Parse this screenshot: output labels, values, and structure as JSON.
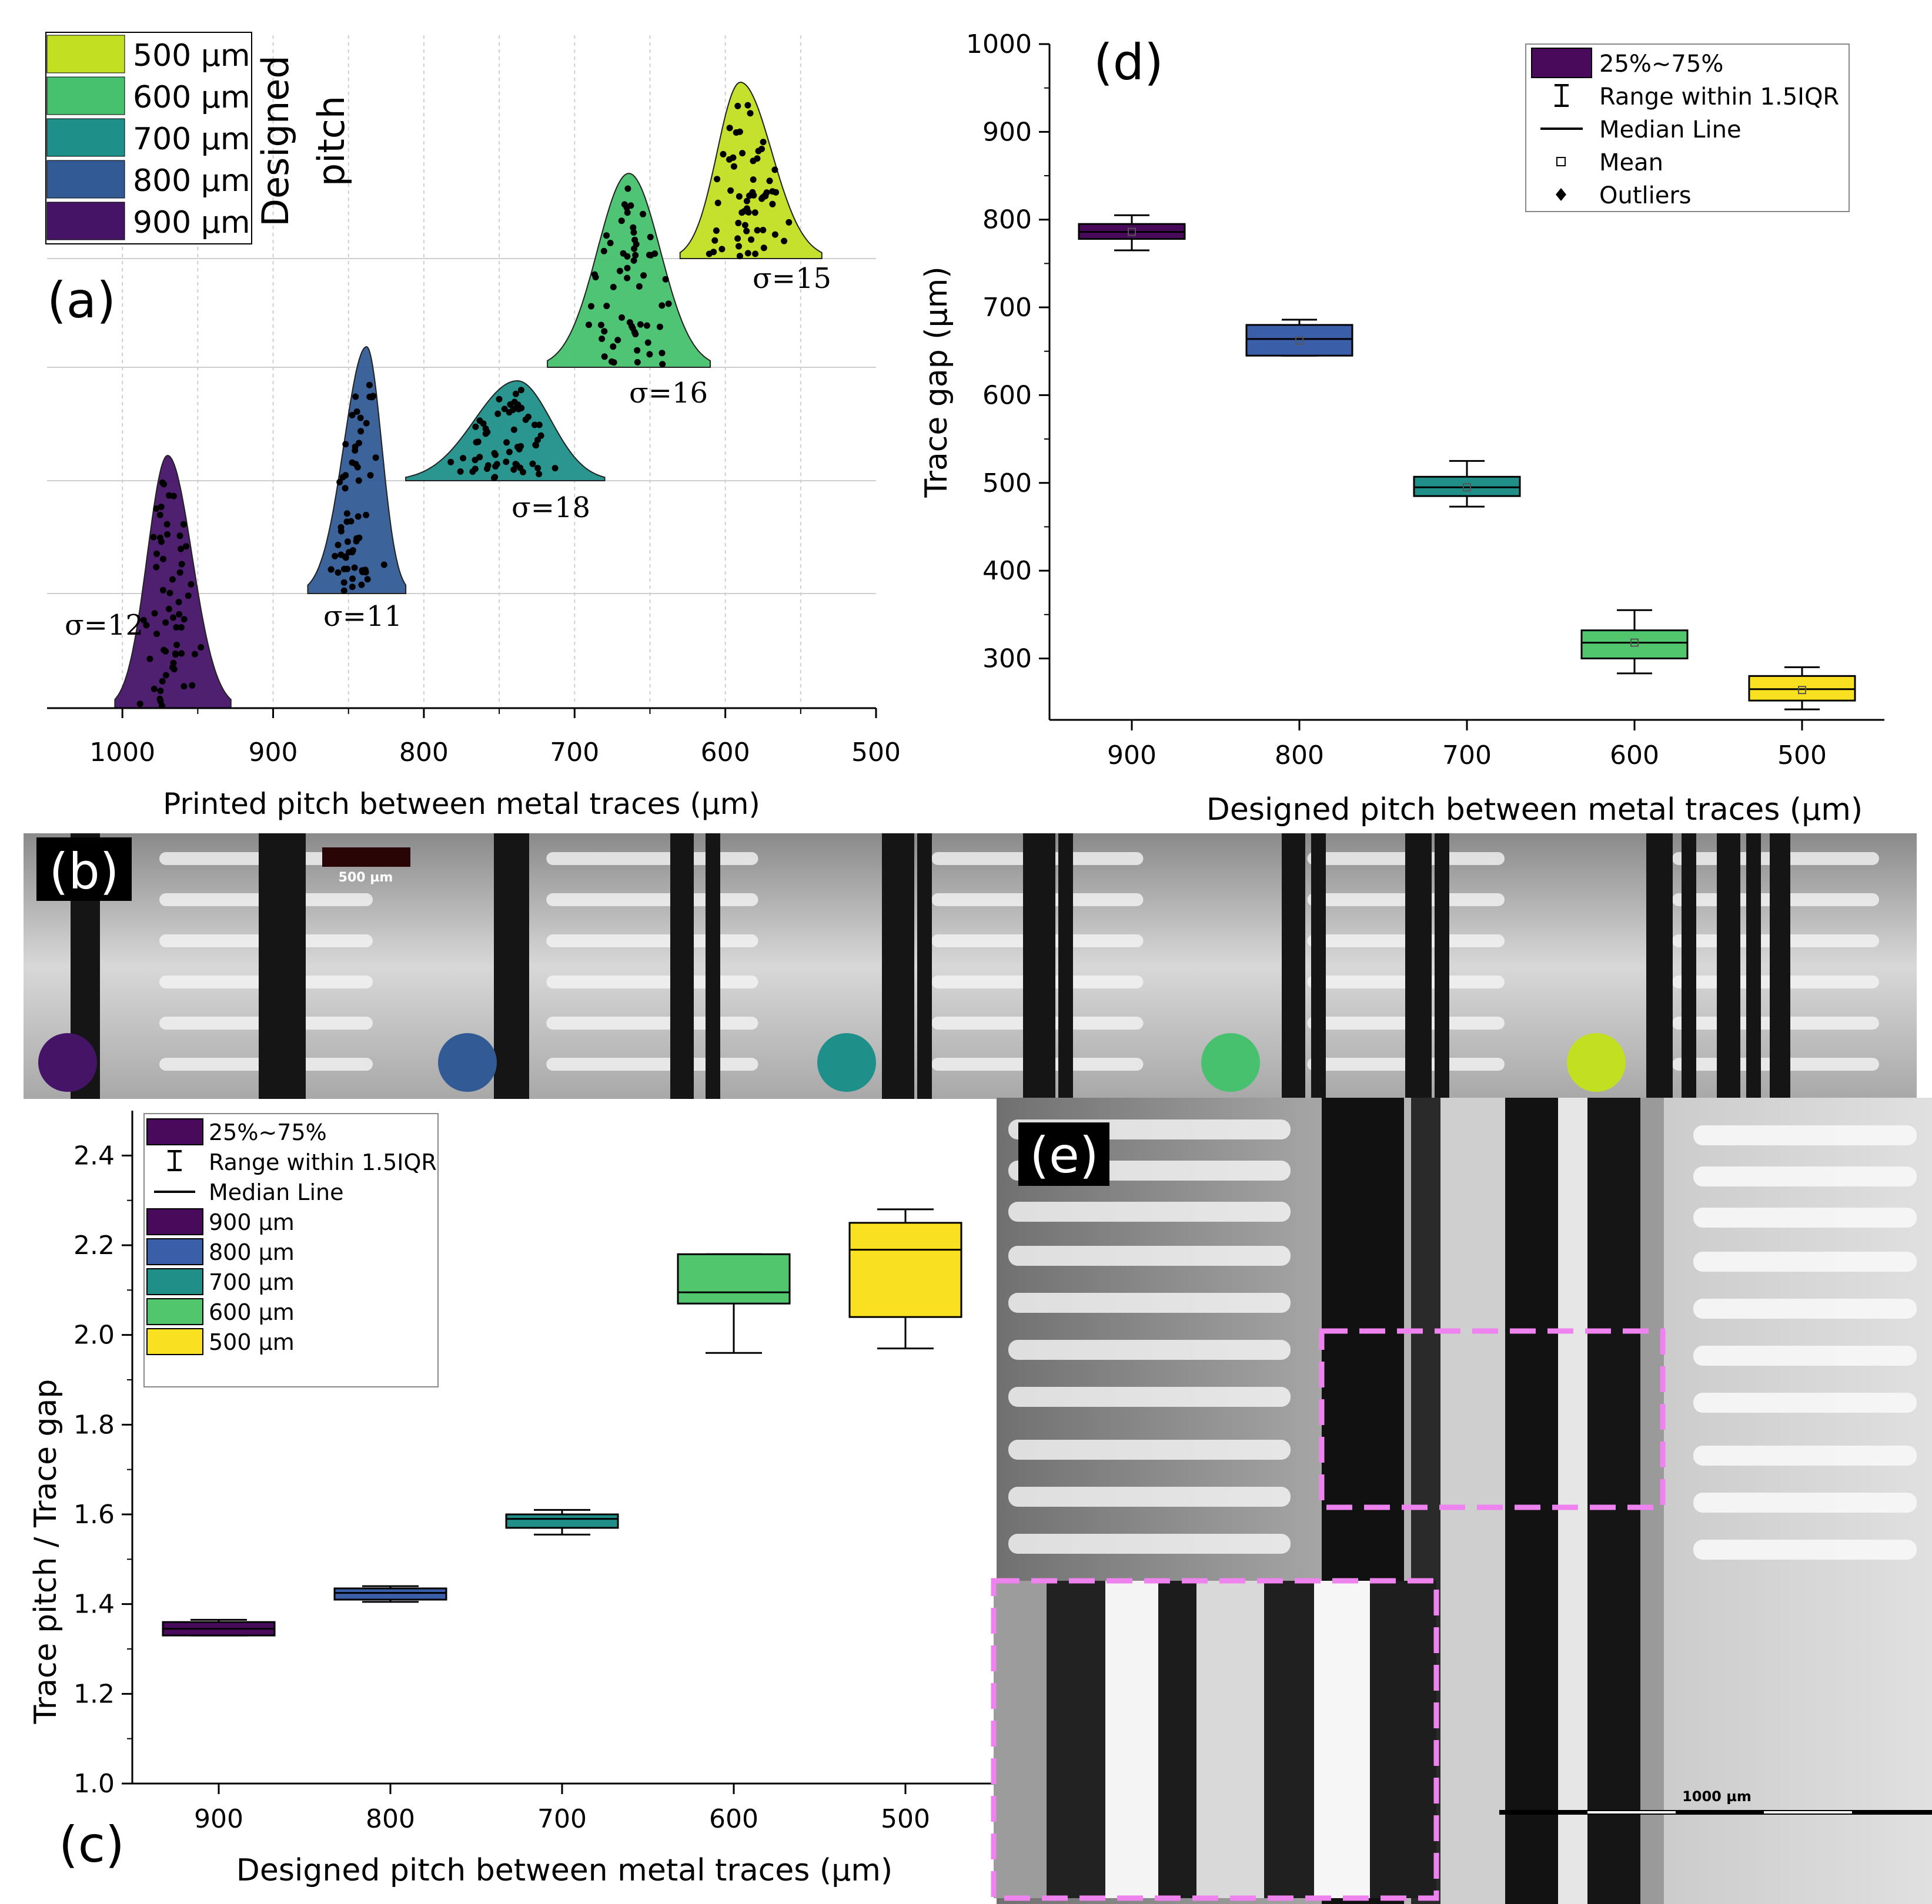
{
  "colors": {
    "c900": "#461467",
    "c800": "#325b95",
    "c700": "#1f9089",
    "c600": "#47c16e",
    "c500": "#c2df22",
    "c500c": "#f9e020",
    "c900c": "#4a0a5c",
    "c800c": "#3a5ea8",
    "c700c": "#1f8f88",
    "c600c": "#52c66c",
    "inset_border": "#ee82ee"
  },
  "panel_a": {
    "label": "(a)",
    "legend_title": "Designed pitch",
    "legend_title_line1": "Designed",
    "legend_title_line2": "pitch",
    "legend": [
      "500 µm",
      "600 µm",
      "700 µm",
      "800 µm",
      "900 µm"
    ],
    "sigma_labels": [
      "σ=12",
      "σ=11",
      "σ=18",
      "σ=16",
      "σ=15"
    ],
    "ticks": [
      "1000",
      "900",
      "800",
      "700",
      "600",
      "500"
    ],
    "xlabel": "Printed pitch between metal traces (µm)"
  },
  "panel_b": {
    "label": "(b)",
    "scalebar": "500 µm"
  },
  "panel_c": {
    "label": "(c)",
    "legend": [
      "25%~75%",
      "Range within 1.5IQR",
      "Median Line",
      "900 µm",
      "800 µm",
      "700 µm",
      "600 µm",
      "500 µm"
    ],
    "xticks": [
      "900",
      "800",
      "700",
      "600",
      "500"
    ],
    "yticks": [
      "1.0",
      "1.2",
      "1.4",
      "1.6",
      "1.8",
      "2.0",
      "2.2",
      "2.4"
    ],
    "xlabel": "Designed pitch between metal traces (µm)",
    "ylabel": "Trace pitch / Trace gap"
  },
  "panel_d": {
    "label": "(d)",
    "legend": [
      "25%~75%",
      "Range within 1.5IQR",
      "Median Line",
      "Mean",
      "Outliers"
    ],
    "xticks": [
      "900",
      "800",
      "700",
      "600",
      "500"
    ],
    "yticks": [
      "300",
      "400",
      "500",
      "600",
      "700",
      "800",
      "900",
      "1000"
    ],
    "xlabel": "Designed pitch between metal traces (µm)",
    "ylabel": "Trace gap (µm)"
  },
  "panel_e": {
    "label": "(e)",
    "scalebar": "1000 µm"
  },
  "chart_data": [
    {
      "panel": "a",
      "type": "area",
      "title": "",
      "xlabel": "Printed pitch between metal traces (µm)",
      "xlim": [
        1050,
        500
      ],
      "x_reversed": true,
      "legend_title": "Designed pitch",
      "series": [
        {
          "name": "900 µm",
          "peak": 970,
          "xrange": [
            1005,
            928
          ],
          "sigma": 12,
          "sigma_label": "σ=12"
        },
        {
          "name": "800 µm",
          "peak": 838,
          "xrange": [
            877,
            812
          ],
          "sigma": 11,
          "sigma_label": "σ=11"
        },
        {
          "name": "700 µm",
          "peak": 738,
          "xrange": [
            812,
            680
          ],
          "sigma": 18,
          "sigma_label": "σ=18"
        },
        {
          "name": "600 µm",
          "peak": 664,
          "xrange": [
            718,
            610
          ],
          "sigma": 16,
          "sigma_label": "σ=16"
        },
        {
          "name": "500 µm",
          "peak": 590,
          "xrange": [
            630,
            536
          ],
          "sigma": 15,
          "sigma_label": "σ=15"
        }
      ]
    },
    {
      "panel": "c",
      "type": "box",
      "title": "",
      "xlabel": "Designed pitch between metal traces (µm)",
      "ylabel": "Trace pitch / Trace gap",
      "categories": [
        "900",
        "800",
        "700",
        "600",
        "500"
      ],
      "ylim": [
        1.0,
        2.5
      ],
      "series": [
        {
          "name": "900 µm",
          "min": 1.33,
          "q1": 1.33,
          "median": 1.345,
          "q3": 1.36,
          "max": 1.365
        },
        {
          "name": "800 µm",
          "min": 1.405,
          "q1": 1.41,
          "median": 1.425,
          "q3": 1.435,
          "max": 1.44
        },
        {
          "name": "700 µm",
          "min": 1.555,
          "q1": 1.57,
          "median": 1.59,
          "q3": 1.6,
          "max": 1.61
        },
        {
          "name": "600 µm",
          "min": 1.96,
          "q1": 2.07,
          "median": 2.095,
          "q3": 2.18,
          "max": 2.18
        },
        {
          "name": "500 µm",
          "min": 1.97,
          "q1": 2.04,
          "median": 2.19,
          "q3": 2.25,
          "max": 2.28
        }
      ]
    },
    {
      "panel": "d",
      "type": "box",
      "title": "",
      "xlabel": "Designed pitch between metal traces (µm)",
      "ylabel": "Trace gap (µm)",
      "categories": [
        "900",
        "800",
        "700",
        "600",
        "500"
      ],
      "ylim": [
        230,
        1000
      ],
      "series": [
        {
          "name": "900 µm",
          "min": 765,
          "q1": 778,
          "median": 786,
          "q3": 795,
          "max": 805,
          "mean": 786
        },
        {
          "name": "800 µm",
          "min": 645,
          "q1": 645,
          "median": 664,
          "q3": 680,
          "max": 686,
          "mean": 662
        },
        {
          "name": "700 µm",
          "min": 473,
          "q1": 485,
          "median": 495,
          "q3": 507,
          "max": 525,
          "mean": 495
        },
        {
          "name": "600 µm",
          "min": 283,
          "q1": 300,
          "median": 318,
          "q3": 332,
          "max": 355,
          "mean": 318
        },
        {
          "name": "500 µm",
          "min": 242,
          "q1": 252,
          "median": 265,
          "q3": 280,
          "max": 290,
          "mean": 264
        }
      ]
    }
  ]
}
